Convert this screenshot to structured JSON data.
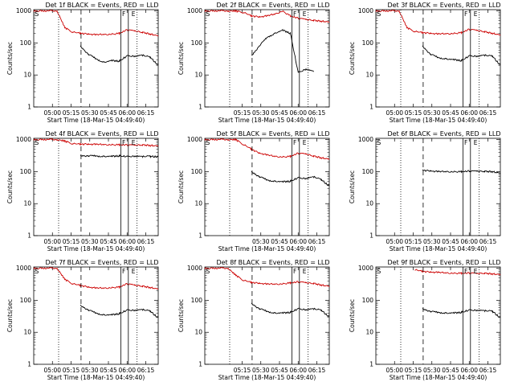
{
  "window": {
    "background": "#ffffff"
  },
  "chart_data": [
    {
      "type": "line",
      "title": "Det 1f BLACK = Events, RED = LLD",
      "xlabel": "Start Time (18-Mar-15 04:49:40)",
      "ylabel": "Counts/sec",
      "xticks": [
        "05:00",
        "05:15",
        "05:30",
        "05:45",
        "06:00",
        "06:15"
      ],
      "yticks": [
        "1",
        "10",
        "100",
        "1000"
      ],
      "ylim": [
        1,
        1100
      ],
      "yscale": "log",
      "marker_labels": [
        "S",
        "F",
        "E"
      ],
      "series": [
        {
          "color": "#cc0000",
          "values": [
            1000,
            1000,
            1000,
            1000,
            300,
            220,
            200,
            190,
            180,
            185,
            190,
            200,
            260,
            240,
            210,
            190,
            170
          ]
        },
        {
          "color": "#000000",
          "values": [
            null,
            null,
            null,
            null,
            null,
            null,
            80,
            45,
            32,
            25,
            28,
            27,
            40,
            38,
            42,
            35,
            20
          ]
        }
      ]
    },
    {
      "type": "line",
      "title": "Det 2f BLACK = Events, RED = LLD",
      "xlabel": "Start Time (18-Mar-15 04:49:40)",
      "ylabel": "Counts/sec",
      "xticks": [
        "05:15",
        "05:30",
        "05:45",
        "06:00",
        "06:15"
      ],
      "yticks": [
        "1",
        "10",
        "100",
        "1000"
      ],
      "ylim": [
        1,
        1100
      ],
      "yscale": "log",
      "marker_labels": [
        "S",
        "F",
        "E"
      ],
      "series": [
        {
          "color": "#cc0000",
          "values": [
            1000,
            1000,
            1000,
            1000,
            1000,
            900,
            700,
            650,
            700,
            800,
            1000,
            700,
            600,
            550,
            500,
            480,
            460
          ]
        },
        {
          "color": "#000000",
          "values": [
            null,
            null,
            null,
            null,
            null,
            null,
            40,
            80,
            150,
            200,
            250,
            200,
            12,
            15,
            13,
            null,
            null
          ]
        }
      ]
    },
    {
      "type": "line",
      "title": "Det 3f BLACK = Events, RED = LLD",
      "xlabel": "Start Time (18-Mar-15 04:49:40)",
      "ylabel": "Counts/sec",
      "xticks": [
        "05:00",
        "05:15",
        "05:30",
        "05:45",
        "06:00",
        "06:15"
      ],
      "yticks": [
        "1",
        "10",
        "100",
        "1000"
      ],
      "ylim": [
        1,
        1100
      ],
      "yscale": "log",
      "marker_labels": [
        "S",
        "F",
        "E"
      ],
      "series": [
        {
          "color": "#cc0000",
          "values": [
            1000,
            1000,
            1000,
            1000,
            300,
            230,
            210,
            200,
            190,
            195,
            200,
            210,
            270,
            250,
            220,
            200,
            180
          ]
        },
        {
          "color": "#000000",
          "values": [
            null,
            null,
            null,
            null,
            null,
            null,
            80,
            45,
            35,
            32,
            30,
            28,
            40,
            38,
            42,
            38,
            20
          ]
        }
      ]
    },
    {
      "type": "line",
      "title": "Det 4f BLACK = Events, RED = LLD",
      "xlabel": "Start Time (18-Mar-15 04:49:40)",
      "ylabel": "Counts/sec",
      "xticks": [
        "05:00",
        "05:15",
        "05:30",
        "05:45",
        "06:00",
        "06:15"
      ],
      "yticks": [
        "1",
        "10",
        "100",
        "1000"
      ],
      "ylim": [
        1,
        1100
      ],
      "yscale": "log",
      "marker_labels": [
        "S",
        "F",
        "E"
      ],
      "series": [
        {
          "color": "#cc0000",
          "values": [
            1000,
            1000,
            1000,
            1000,
            900,
            750,
            720,
            720,
            710,
            700,
            700,
            690,
            690,
            680,
            670,
            660,
            650
          ]
        },
        {
          "color": "#000000",
          "values": [
            null,
            null,
            null,
            null,
            null,
            null,
            320,
            310,
            310,
            300,
            300,
            310,
            300,
            300,
            300,
            300,
            290
          ]
        }
      ]
    },
    {
      "type": "line",
      "title": "Det 5f BLACK = Events, RED = LLD",
      "xlabel": "Start Time (18-Mar-15 04:49:40)",
      "ylabel": "Counts/sec",
      "xticks": [
        "05:30",
        "05:45",
        "06:00",
        "06:15"
      ],
      "yticks": [
        "1",
        "10",
        "100",
        "1000"
      ],
      "ylim": [
        1,
        1100
      ],
      "yscale": "log",
      "marker_labels": [
        "S",
        "F",
        "E"
      ],
      "series": [
        {
          "color": "#cc0000",
          "values": [
            1000,
            1000,
            1000,
            1000,
            1000,
            700,
            500,
            380,
            330,
            300,
            290,
            300,
            380,
            360,
            300,
            270,
            250
          ]
        },
        {
          "color": "#000000",
          "values": [
            null,
            null,
            null,
            null,
            null,
            null,
            100,
            70,
            55,
            50,
            48,
            50,
            65,
            60,
            70,
            55,
            35
          ]
        }
      ]
    },
    {
      "type": "line",
      "title": "Det 6f BLACK = Events, RED = LLD",
      "xlabel": "Start Time (18-Mar-15 04:49:40)",
      "ylabel": "Counts/sec",
      "xticks": [
        "05:00",
        "05:15",
        "05:30",
        "05:45",
        "06:00",
        "06:15"
      ],
      "yticks": [
        "1",
        "10",
        "100",
        "1000"
      ],
      "ylim": [
        1,
        1100
      ],
      "yscale": "log",
      "marker_labels": [
        "S",
        "F",
        "E"
      ],
      "series": [
        {
          "color": "#000000",
          "values": [
            null,
            null,
            null,
            null,
            null,
            null,
            110,
            105,
            100,
            100,
            100,
            100,
            105,
            105,
            100,
            100,
            90
          ]
        }
      ]
    },
    {
      "type": "line",
      "title": "Det 7f BLACK = Events, RED = LLD",
      "xlabel": "Start Time (18-Mar-15 04:49:40)",
      "ylabel": "Counts/sec",
      "xticks": [
        "05:00",
        "05:15",
        "05:30",
        "05:45",
        "06:00",
        "06:15"
      ],
      "yticks": [
        "1",
        "10",
        "100",
        "1000"
      ],
      "ylim": [
        1,
        1100
      ],
      "yscale": "log",
      "marker_labels": [
        "S",
        "F",
        "E"
      ],
      "series": [
        {
          "color": "#cc0000",
          "values": [
            1000,
            1000,
            1000,
            1000,
            450,
            330,
            290,
            260,
            240,
            240,
            250,
            260,
            330,
            300,
            270,
            250,
            230
          ]
        },
        {
          "color": "#000000",
          "values": [
            null,
            null,
            null,
            null,
            null,
            null,
            70,
            50,
            40,
            35,
            35,
            38,
            50,
            48,
            52,
            45,
            28
          ]
        }
      ]
    },
    {
      "type": "line",
      "title": "Det 8f BLACK = Events, RED = LLD",
      "xlabel": "Start Time (18-Mar-15 04:49:40)",
      "ylabel": "Counts/sec",
      "xticks": [
        "05:15",
        "05:30",
        "05:45",
        "06:00",
        "06:15"
      ],
      "yticks": [
        "1",
        "10",
        "100",
        "1000"
      ],
      "ylim": [
        1,
        1100
      ],
      "yscale": "log",
      "marker_labels": [
        "S",
        "F",
        "E"
      ],
      "series": [
        {
          "color": "#cc0000",
          "values": [
            1000,
            1000,
            1000,
            1000,
            600,
            420,
            360,
            340,
            320,
            320,
            330,
            350,
            380,
            360,
            330,
            300,
            280
          ]
        },
        {
          "color": "#000000",
          "values": [
            null,
            null,
            null,
            null,
            null,
            null,
            80,
            55,
            45,
            40,
            40,
            42,
            55,
            50,
            55,
            48,
            30
          ]
        }
      ]
    },
    {
      "type": "line",
      "title": "Det 9f BLACK = Events, RED = LLD",
      "xlabel": "Start Time (18-Mar-15 04:49:40)",
      "ylabel": "Counts/sec",
      "xticks": [
        "05:00",
        "05:15",
        "05:30",
        "05:45",
        "06:00",
        "06:15"
      ],
      "yticks": [
        "1",
        "10",
        "100",
        "1000"
      ],
      "ylim": [
        1,
        1100
      ],
      "yscale": "log",
      "marker_labels": [
        "S",
        "F",
        "E"
      ],
      "series": [
        {
          "color": "#cc0000",
          "values": [
            null,
            null,
            null,
            null,
            null,
            900,
            800,
            760,
            740,
            720,
            710,
            700,
            720,
            700,
            690,
            670,
            650
          ]
        },
        {
          "color": "#000000",
          "values": [
            null,
            null,
            null,
            null,
            null,
            null,
            55,
            45,
            42,
            40,
            40,
            42,
            50,
            48,
            48,
            45,
            28
          ]
        }
      ]
    }
  ]
}
